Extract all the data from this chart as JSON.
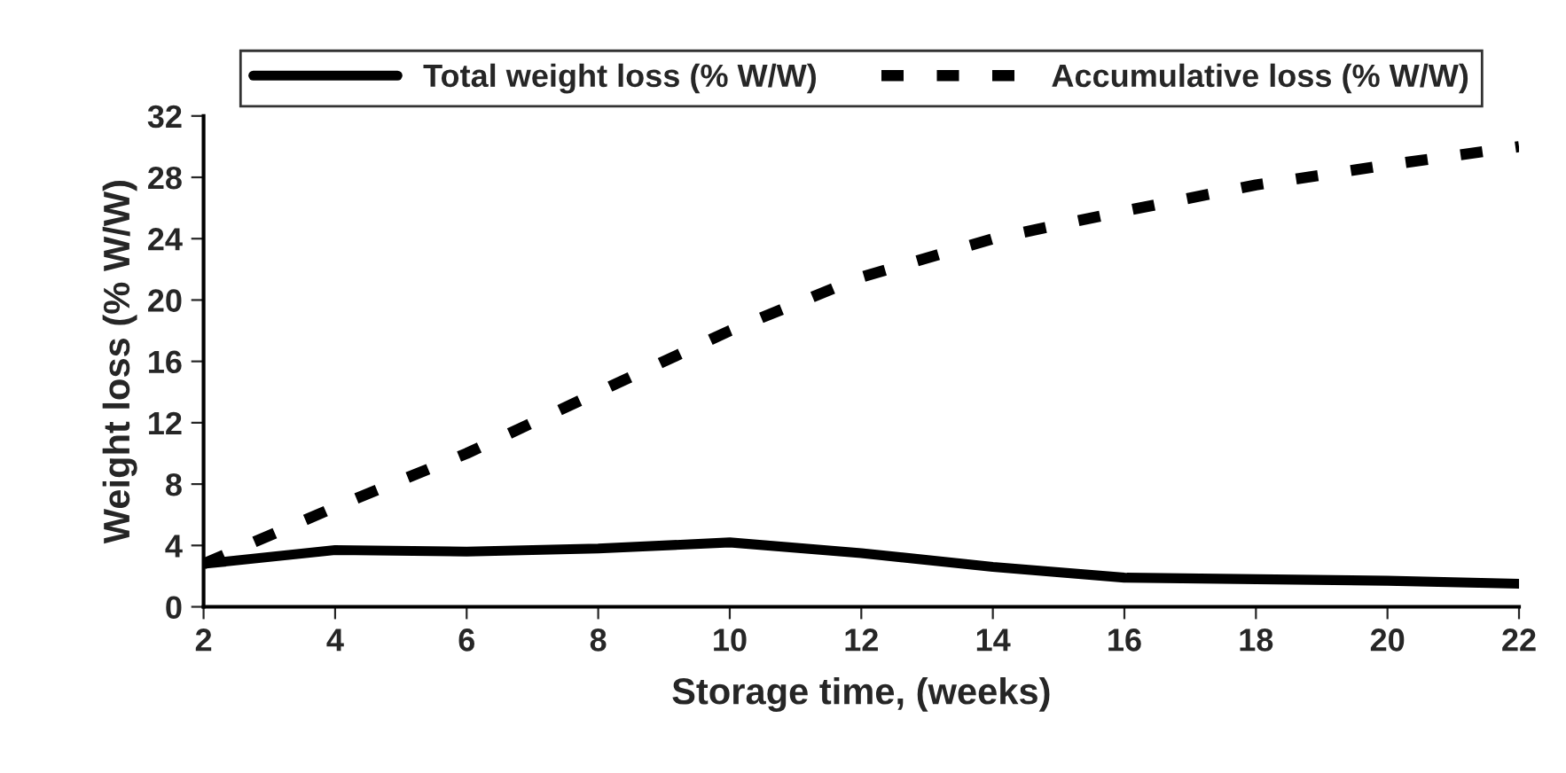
{
  "chart_data": {
    "type": "line",
    "xlabel": "Storage time, (weeks)",
    "ylabel": "Weight loss (% W/W)",
    "x": [
      2,
      4,
      6,
      8,
      10,
      12,
      14,
      16,
      18,
      20,
      22
    ],
    "series": [
      {
        "name": "Total weight loss (% W/W)",
        "color": "#000000",
        "line_style": "solid",
        "values": [
          2.8,
          3.7,
          3.6,
          3.8,
          4.2,
          3.5,
          2.6,
          1.9,
          1.8,
          1.7,
          1.5
        ]
      },
      {
        "name": "Accumulative loss (% W/W)",
        "color": "#000000",
        "line_style": "dashed",
        "values": [
          2.8,
          6.5,
          10,
          14,
          18,
          21.5,
          24,
          25.8,
          27.5,
          28.8,
          30
        ]
      }
    ],
    "xlim": [
      2,
      22
    ],
    "xticks": [
      2,
      4,
      6,
      8,
      10,
      12,
      14,
      16,
      18,
      20,
      22
    ],
    "ylim": [
      0,
      32
    ],
    "yticks": [
      0,
      4,
      8,
      12,
      16,
      20,
      24,
      28,
      32
    ],
    "grid": false,
    "legend": "top",
    "marker": "none"
  }
}
